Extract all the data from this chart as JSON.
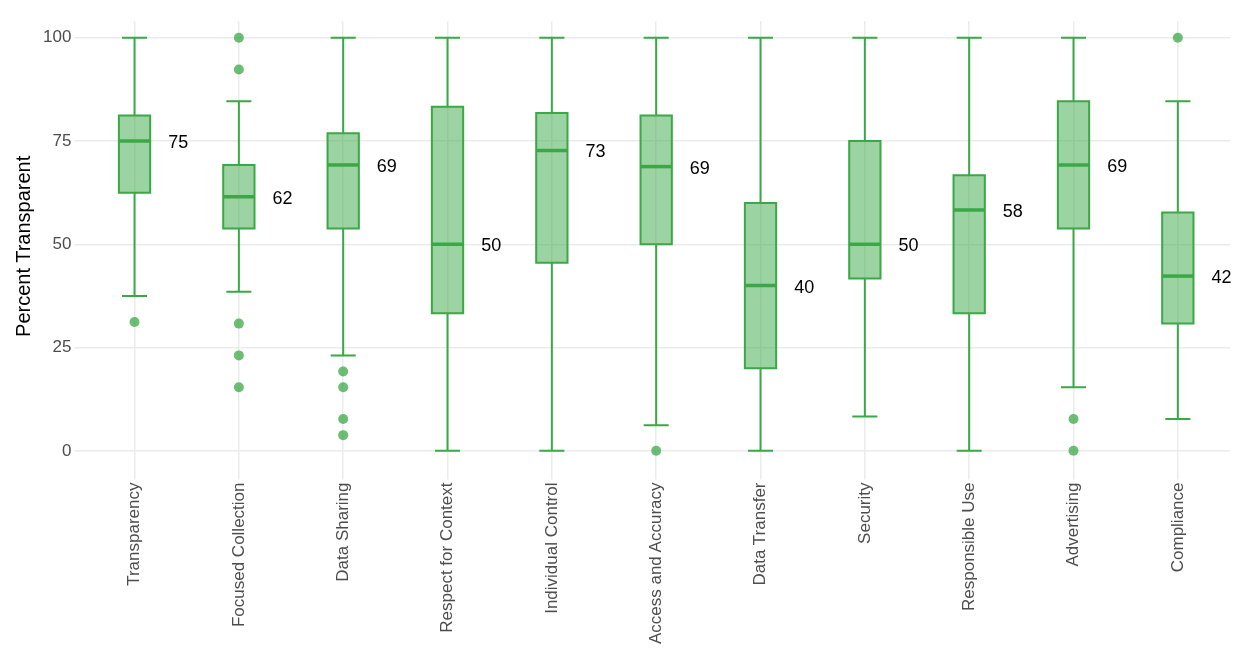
{
  "chart_data": {
    "type": "box",
    "ylabel": "Percent Transparent",
    "color": "#3aa845",
    "categories": [
      "Transparency",
      "Focused Collection",
      "Data Sharing",
      "Respect for Context",
      "Individual Control",
      "Access and Accuracy",
      "Data Transfer",
      "Security",
      "Responsible Use",
      "Advertising",
      "Compliance"
    ],
    "boxes": [
      {
        "low": 37.5,
        "q1": 62.5,
        "median": 75,
        "q3": 81.2,
        "high": 100,
        "outliers": [
          31.2
        ]
      },
      {
        "low": 38.5,
        "q1": 53.8,
        "median": 61.5,
        "q3": 69.2,
        "high": 84.6,
        "outliers": [
          100,
          92.3,
          30.8,
          23.1,
          15.4
        ]
      },
      {
        "low": 23.1,
        "q1": 53.8,
        "median": 69.2,
        "q3": 76.9,
        "high": 100,
        "outliers": [
          19.2,
          15.4,
          7.7,
          3.8
        ]
      },
      {
        "low": 0,
        "q1": 33.3,
        "median": 50,
        "q3": 83.3,
        "high": 100
      },
      {
        "low": 0,
        "q1": 45.5,
        "median": 72.7,
        "q3": 81.8,
        "high": 100
      },
      {
        "low": 6.2,
        "q1": 50,
        "median": 68.8,
        "q3": 81.2,
        "high": 100,
        "outliers": [
          0
        ]
      },
      {
        "low": 0,
        "q1": 20,
        "median": 40,
        "q3": 60,
        "high": 100
      },
      {
        "low": 8.3,
        "q1": 41.7,
        "median": 50,
        "q3": 75,
        "high": 100
      },
      {
        "low": 0,
        "q1": 33.3,
        "median": 58.3,
        "q3": 66.7,
        "high": 100
      },
      {
        "low": 15.4,
        "q1": 53.8,
        "median": 69.2,
        "q3": 84.6,
        "high": 100,
        "outliers": [
          7.7,
          0
        ]
      },
      {
        "low": 7.7,
        "q1": 30.8,
        "median": 42.3,
        "q3": 57.7,
        "high": 84.6,
        "outliers": [
          100
        ]
      }
    ],
    "value_labels": [
      "75",
      "62",
      "69",
      "50",
      "73",
      "69",
      "40",
      "50",
      "58",
      "69",
      "42"
    ],
    "ylim": [
      -5,
      104
    ],
    "yticks": [
      0,
      25,
      50,
      75,
      100
    ],
    "grid": true
  }
}
